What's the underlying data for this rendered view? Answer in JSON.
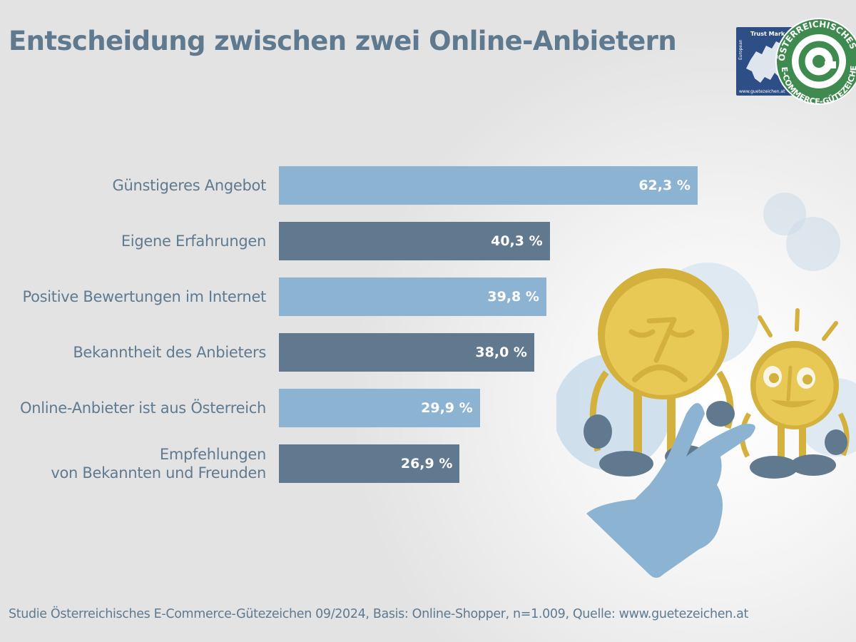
{
  "header": {
    "title": "Entscheidung zwischen zwei Online-Anbietern"
  },
  "logo": {
    "trust_mark_text": "Trust Mark",
    "trust_mark_prefix": "European",
    "url_text": "www.guetezeichen.at",
    "seal_top_text": "ÖSTERREICHISCHES",
    "seal_bottom_text": "E-COMMERCE-GÜTEZEICHEN",
    "seal_icon": "at-sign-icon",
    "colors": {
      "blue": "#2d4f86",
      "green": "#3f8a4f"
    }
  },
  "colors": {
    "light_bar": "#8db3d3",
    "dark_bar": "#61798e",
    "text": "#5f7a8f",
    "coin": "#e8c955",
    "coin_edge": "#d4b13d",
    "hand": "#8db3d3"
  },
  "chart_data": {
    "type": "bar",
    "orientation": "horizontal",
    "title": "Entscheidung zwischen zwei Online-Anbietern",
    "xlabel": "",
    "ylabel": "",
    "unit": "%",
    "xlim": [
      0,
      100
    ],
    "grid": false,
    "legend": "none",
    "categories": [
      "Günstigeres Angebot",
      "Eigene Erfahrungen",
      "Positive Bewertungen im Internet",
      "Bekanntheit des Anbieters",
      "Online-Anbieter ist aus Österreich",
      "Empfehlungen\nvon Bekannten und Freunden"
    ],
    "values": [
      62.3,
      40.3,
      39.8,
      38.0,
      29.9,
      26.9
    ],
    "value_labels": [
      "62,3 %",
      "40,3 %",
      "39,8 %",
      "38,0 %",
      "29,9 %",
      "26,9 %"
    ],
    "bar_styles": [
      "light",
      "dark",
      "light",
      "dark",
      "light",
      "dark"
    ]
  },
  "illustration": {
    "description": "Sad 7-coin and happy 10-coin characters, hand pointing to the 10-coin",
    "left_coin_number": "7",
    "right_coin_number": "10"
  },
  "footer": {
    "source": "Studie Österreichisches E-Commerce-Gütezeichen 09/2024, Basis: Online-Shopper, n=1.009, Quelle: www.guetezeichen.at"
  }
}
